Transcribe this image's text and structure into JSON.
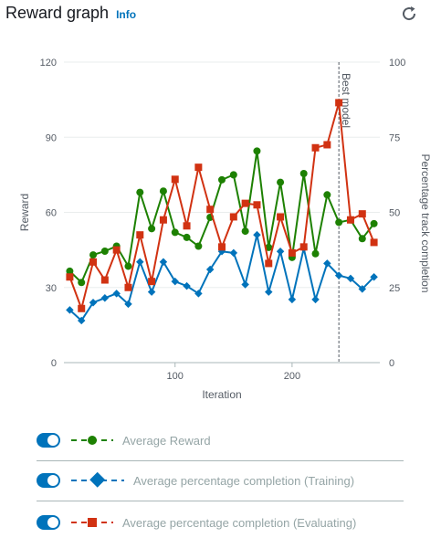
{
  "header": {
    "title": "Reward graph",
    "info_label": "Info"
  },
  "icons": {
    "refresh": "refresh-icon"
  },
  "chart_data": {
    "type": "line",
    "xlabel": "Iteration",
    "ylabel": "Reward",
    "y2label": "Percentage track completion",
    "xlim": [
      5,
      275
    ],
    "xticks": [
      100,
      200
    ],
    "ylim": [
      0,
      120
    ],
    "yticks": [
      0,
      30,
      60,
      90,
      120
    ],
    "y2lim": [
      0,
      100
    ],
    "y2ticks": [
      0,
      25,
      50,
      75,
      100
    ],
    "grid": "horizontal",
    "annotation": {
      "label": "Best model",
      "x": 240
    },
    "x": [
      10,
      20,
      30,
      40,
      50,
      60,
      70,
      80,
      90,
      100,
      110,
      120,
      130,
      140,
      150,
      160,
      170,
      180,
      190,
      200,
      210,
      220,
      230,
      240,
      250,
      260,
      270
    ],
    "series": [
      {
        "name": "Average Reward",
        "axis": "left",
        "color": "#1d8102",
        "marker": "circle",
        "values": [
          36.5,
          32,
          43,
          44.5,
          46.5,
          38.5,
          68,
          53.5,
          68.5,
          52,
          50,
          46.5,
          58,
          73,
          75,
          52.5,
          84.5,
          46,
          72,
          42,
          75.5,
          43.5,
          67,
          56,
          57,
          49.5,
          55.5
        ]
      },
      {
        "name": "Average percentage completion (Training)",
        "axis": "right",
        "color": "#0073bb",
        "marker": "diamond",
        "values": [
          17.5,
          14,
          20,
          21.5,
          23,
          19.5,
          33.5,
          23.5,
          33.5,
          27,
          25.5,
          23,
          31,
          37,
          36.5,
          26,
          42.5,
          23.5,
          37,
          21,
          38,
          21,
          33,
          29,
          28,
          24.5,
          28.5
        ]
      },
      {
        "name": "Average percentage completion (Evaluating)",
        "axis": "right",
        "color": "#d13212",
        "marker": "square",
        "values": [
          28.5,
          18,
          33.5,
          27.5,
          37.5,
          25,
          42.5,
          27,
          47.5,
          61,
          45.5,
          65,
          51,
          38.5,
          48.5,
          53,
          52.5,
          33,
          48.5,
          36.5,
          38.5,
          71.5,
          72.5,
          86.5,
          47.5,
          49.5,
          40
        ]
      }
    ]
  }
}
